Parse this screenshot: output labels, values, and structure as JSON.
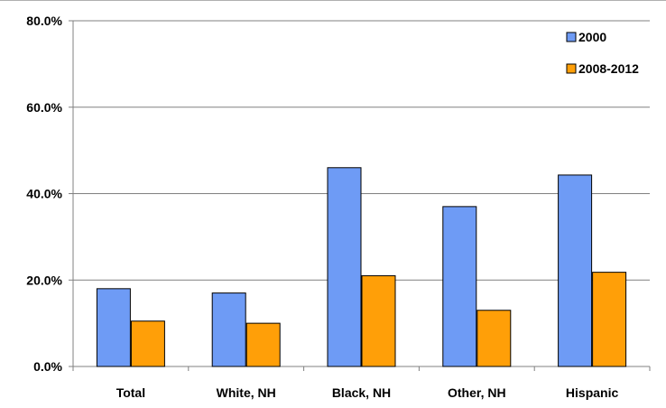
{
  "chart_data": {
    "type": "bar",
    "title": "",
    "xlabel": "",
    "ylabel": "",
    "categories": [
      "Total",
      "White, NH",
      "Black, NH",
      "Other, NH",
      "Hispanic"
    ],
    "series": [
      {
        "name": "2000",
        "values": [
          18.0,
          17.0,
          46.0,
          37.0,
          44.3
        ],
        "color": "#6E9BF5"
      },
      {
        "name": "2008-2012",
        "values": [
          10.5,
          10.0,
          21.0,
          13.0,
          21.8
        ],
        "color": "#FF9F08"
      }
    ],
    "ylim": [
      0,
      80
    ],
    "yticks": [
      "0.0%",
      "20.0%",
      "40.0%",
      "60.0%",
      "80.0%"
    ],
    "grid": true,
    "legend_position": "top-right"
  }
}
